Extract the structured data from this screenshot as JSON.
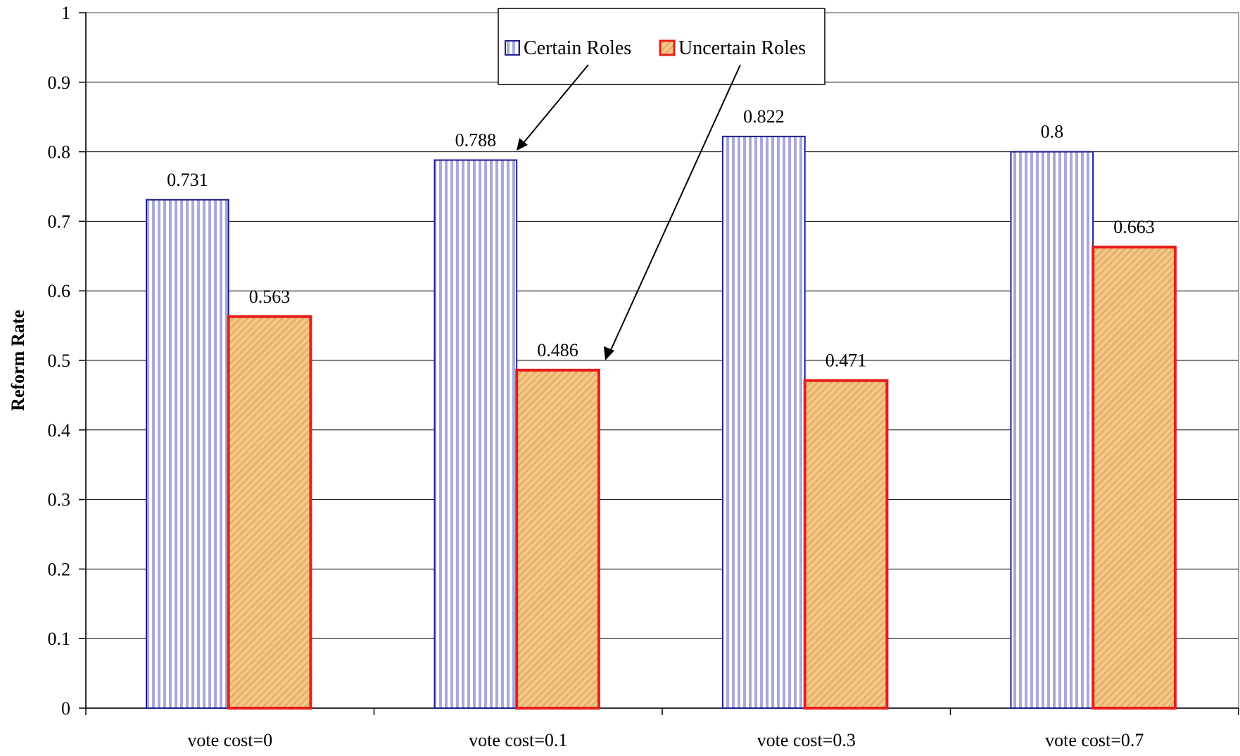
{
  "chart_data": {
    "type": "bar",
    "title": "",
    "xlabel": "",
    "ylabel": "Reform Rate",
    "ylim": [
      0,
      1
    ],
    "yticks": [
      "0",
      "0.1",
      "0.2",
      "0.3",
      "0.4",
      "0.5",
      "0.6",
      "0.7",
      "0.8",
      "0.9",
      "1"
    ],
    "categories": [
      "vote cost=0",
      "vote cost=0.1",
      "vote cost=0.3",
      "vote cost=0.7"
    ],
    "series": [
      {
        "name": "Certain Roles",
        "values": [
          0.731,
          0.788,
          0.822,
          0.8
        ],
        "labels": [
          "0.731",
          "0.788",
          "0.822",
          "0.8"
        ],
        "color": "#1f1f8c",
        "pattern": "vertical-stripes"
      },
      {
        "name": "Uncertain Roles",
        "values": [
          0.563,
          0.486,
          0.471,
          0.663
        ],
        "labels": [
          "0.563",
          "0.486",
          "0.471",
          "0.663"
        ],
        "color": "#e81c1c",
        "pattern": "diagonal-hatch"
      }
    ],
    "grid": true,
    "legend": "top-center"
  }
}
